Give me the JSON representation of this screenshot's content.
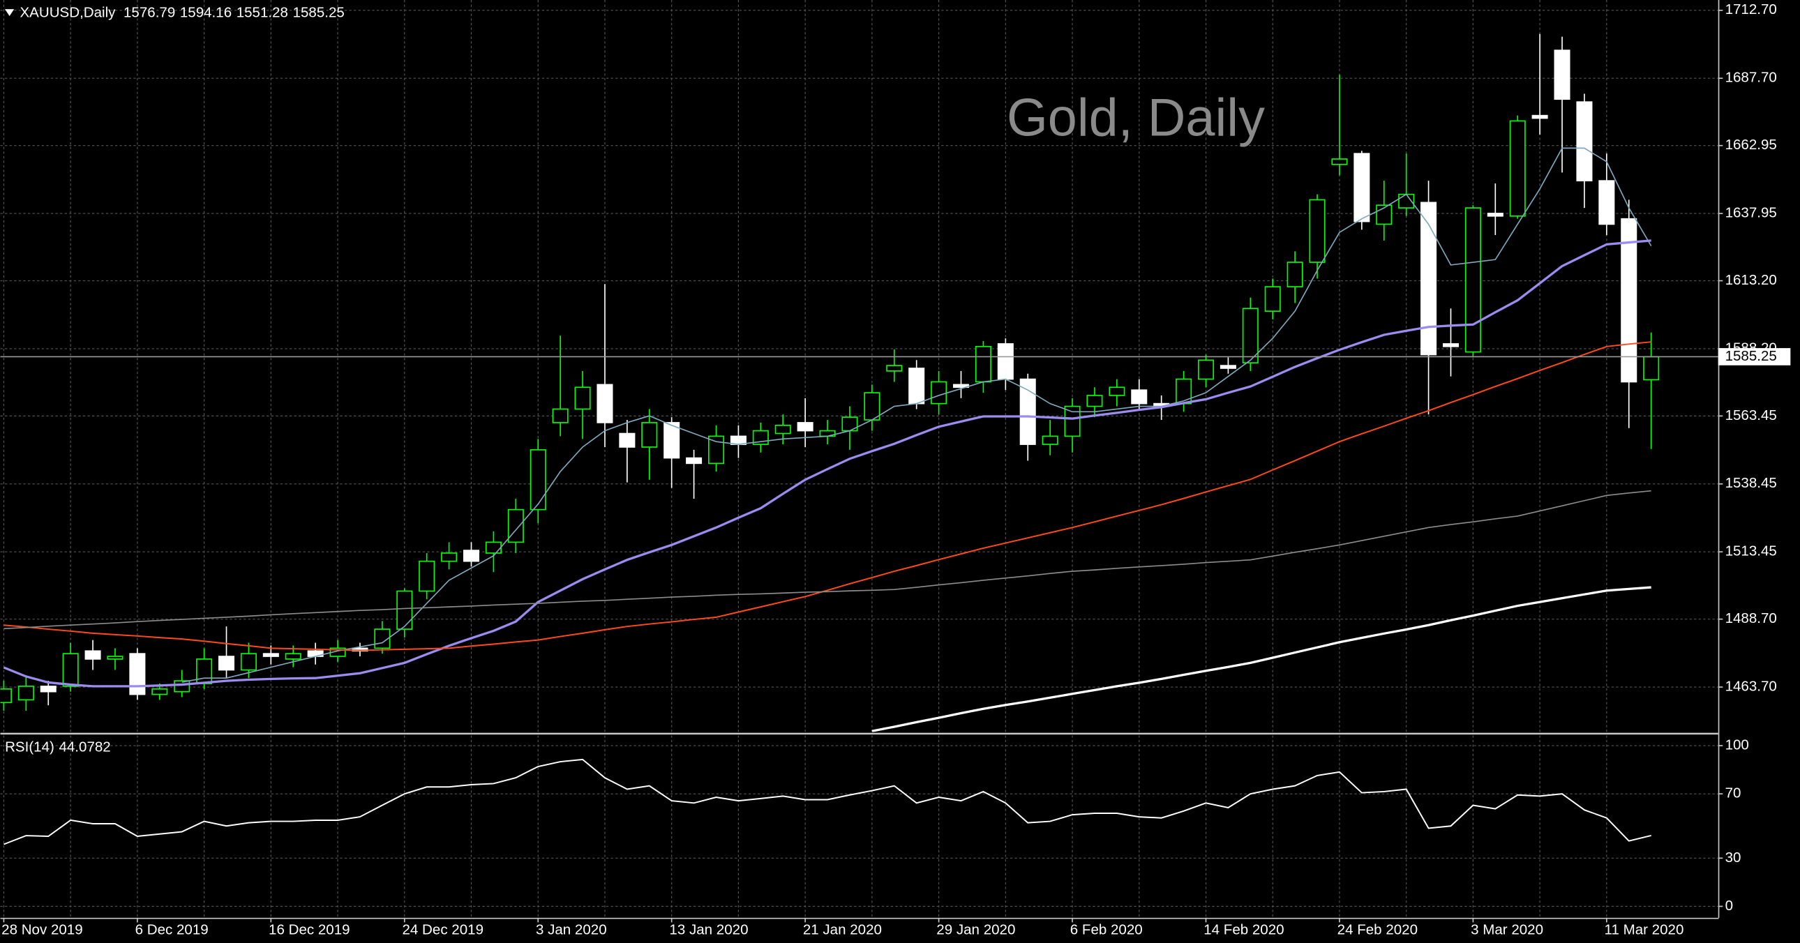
{
  "chart_data": [
    {
      "type": "candlestick",
      "symbol": "XAUUSD,Daily",
      "title": "Gold, Daily",
      "categories": [
        "28 Nov 2019",
        null,
        null,
        null,
        null,
        null,
        "6 Dec 2019",
        null,
        null,
        null,
        null,
        null,
        "16 Dec 2019",
        null,
        null,
        null,
        null,
        null,
        "24 Dec 2019",
        null,
        null,
        null,
        null,
        null,
        "3 Jan 2020",
        null,
        null,
        null,
        null,
        null,
        "13 Jan 2020",
        null,
        null,
        null,
        null,
        null,
        "21 Jan 2020",
        null,
        null,
        null,
        null,
        null,
        "29 Jan 2020",
        null,
        null,
        null,
        null,
        null,
        "6 Feb 2020",
        null,
        null,
        null,
        null,
        null,
        "14 Feb 2020",
        null,
        null,
        null,
        null,
        null,
        "24 Feb 2020",
        null,
        null,
        null,
        null,
        null,
        "3 Mar 2020",
        null,
        null,
        null,
        null,
        null,
        "11 Mar 2020",
        null,
        null
      ],
      "open": [
        1458,
        1459,
        1464,
        1464,
        1477,
        1474,
        1476,
        1461,
        1462,
        1465,
        1475,
        1470,
        1476,
        1474,
        1477,
        1475,
        1478,
        1478,
        1485,
        1499,
        1510,
        1514,
        1513,
        1517,
        1529,
        1561,
        1566,
        1575,
        1557,
        1552,
        1561,
        1548,
        1546,
        1556,
        1553,
        1557,
        1561,
        1556,
        1558,
        1562,
        1580,
        1581,
        1568,
        1575,
        1576,
        1590,
        1577,
        1553,
        1556,
        1567,
        1571,
        1573,
        1568,
        1568,
        1577,
        1582,
        1583,
        1602,
        1611,
        1620,
        1656,
        1660,
        1634,
        1640,
        1642,
        1590,
        1587,
        1638,
        1637,
        1674,
        1698,
        1679,
        1650,
        1636,
        1576.79
      ],
      "high": [
        1466,
        1468,
        1466,
        1480,
        1481,
        1478,
        1478,
        1465,
        1470,
        1478,
        1486,
        1480,
        1479,
        1479,
        1480,
        1481,
        1480,
        1488,
        1500,
        1513,
        1517,
        1517,
        1521,
        1533,
        1555,
        1593,
        1580,
        1612,
        1562,
        1566,
        1563,
        1551,
        1560,
        1560,
        1561,
        1564,
        1570,
        1562,
        1567,
        1575,
        1588,
        1584,
        1580,
        1580,
        1591,
        1592,
        1579,
        1562,
        1570,
        1574,
        1577,
        1577,
        1571,
        1580,
        1586,
        1585,
        1607,
        1614,
        1624,
        1645,
        1689,
        1661,
        1650,
        1660,
        1650,
        1603,
        1641,
        1649,
        1674,
        1704,
        1703,
        1682,
        1660,
        1643,
        1594.16
      ],
      "low": [
        1455,
        1455,
        1457,
        1462,
        1470,
        1470,
        1459,
        1459,
        1460,
        1463,
        1467,
        1467,
        1472,
        1471,
        1472,
        1473,
        1475,
        1476,
        1482,
        1496,
        1507,
        1508,
        1506,
        1513,
        1524,
        1556,
        1555,
        1552,
        1539,
        1540,
        1537,
        1533,
        1543,
        1548,
        1550,
        1553,
        1552,
        1553,
        1551,
        1558,
        1576,
        1566,
        1564,
        1570,
        1572,
        1573,
        1547,
        1549,
        1550,
        1563,
        1567,
        1566,
        1562,
        1565,
        1574,
        1579,
        1580,
        1599,
        1605,
        1614,
        1652,
        1632,
        1628,
        1637,
        1564,
        1578,
        1585,
        1630,
        1636,
        1667,
        1653,
        1640,
        1630,
        1559,
        1551.28
      ],
      "close": [
        1463,
        1464,
        1462,
        1476,
        1474,
        1475,
        1461,
        1463,
        1466,
        1474,
        1470,
        1476,
        1475,
        1476,
        1475,
        1478,
        1477,
        1485,
        1499,
        1510,
        1513,
        1510,
        1517,
        1529,
        1551,
        1566,
        1574,
        1561,
        1552,
        1561,
        1548,
        1546,
        1556,
        1553,
        1558,
        1560,
        1558,
        1558,
        1563,
        1572,
        1582,
        1568,
        1576,
        1574,
        1589,
        1577,
        1553,
        1556,
        1567,
        1571,
        1574,
        1568,
        1567,
        1577,
        1584,
        1581,
        1603,
        1611,
        1620,
        1643,
        1658,
        1635,
        1641,
        1645,
        1586,
        1589,
        1640,
        1637,
        1672,
        1673,
        1680,
        1650,
        1634,
        1576,
        1585.25
      ],
      "up_color": "#00ff00",
      "down_color": "#ffffff",
      "series": [
        {
          "color": "#7fa9bd",
          "width": 1,
          "values": [
            null,
            null,
            null,
            null,
            null,
            null,
            null,
            null,
            1465.5,
            1467,
            1467,
            1469,
            1471,
            1473,
            1475,
            1477,
            1478.5,
            1480,
            1486,
            1494.5,
            1503,
            1507.5,
            1512,
            1521.5,
            1531,
            1543,
            1552,
            1558,
            1561,
            1563.5,
            1560,
            1557,
            1554,
            1553,
            1554,
            1555,
            1555.5,
            1556,
            1558,
            1562,
            1567,
            1568,
            1571,
            1573.5,
            1576,
            1577,
            1573,
            1568,
            1565,
            1565,
            1566,
            1567,
            1567,
            1569,
            1572,
            1578,
            1584,
            1592,
            1602,
            1617,
            1631,
            1636,
            1640,
            1645,
            1634,
            1619,
            1620,
            1621,
            1634,
            1647,
            1662,
            1662,
            1657,
            1640,
            1626
          ]
        },
        {
          "color": "#9c8cf0",
          "width": 2,
          "values": [
            1470.9,
            1467.6,
            1465.4,
            1464.6,
            1464,
            1464,
            1464,
            1464.3,
            1464.6,
            1465.3,
            1466,
            1466.4,
            1466.7,
            1466.9,
            1467,
            1467.9,
            1468.8,
            1470.7,
            1472.6,
            1475.8,
            1478.9,
            1481.7,
            1484.4,
            1487.8,
            1495,
            1499.2,
            1503.4,
            1507,
            1510.5,
            1513.3,
            1516,
            1519.2,
            1522.4,
            1526,
            1529.5,
            1534.8,
            1540,
            1543.9,
            1547.7,
            1550.5,
            1553.2,
            1556.4,
            1559.5,
            1561.4,
            1563.3,
            1563.3,
            1563.3,
            1562.9,
            1562.5,
            1563.6,
            1564.6,
            1565.7,
            1566.7,
            1568.2,
            1569.6,
            1572,
            1574.3,
            1577.9,
            1581.5,
            1584.7,
            1587.8,
            1590.6,
            1593.3,
            1594.8,
            1596.2,
            1596.7,
            1597.1,
            1601.6,
            1606,
            1612.3,
            1618.6,
            1622.6,
            1626.6,
            1627.3,
            1628
          ]
        },
        {
          "color": "#ff4a1c",
          "width": 1.2,
          "values": [
            1486.5,
            1485.8,
            1485,
            1484.3,
            1483.5,
            1483,
            1482.5,
            1481.9,
            1481.4,
            1480.6,
            1479.7,
            1478.9,
            1478,
            1477.8,
            1477.6,
            1477.4,
            1477.2,
            1477.4,
            1477.6,
            1477.8,
            1478,
            1478.8,
            1479.5,
            1480.3,
            1481,
            1482.3,
            1483.5,
            1484.8,
            1486,
            1486.9,
            1487.7,
            1488.6,
            1489.4,
            1491.3,
            1493.2,
            1495.1,
            1497,
            1499.3,
            1501.7,
            1504,
            1506.3,
            1508.4,
            1510.6,
            1512.7,
            1514.8,
            1516.7,
            1518.6,
            1520.5,
            1522.4,
            1524.5,
            1526.6,
            1528.7,
            1530.8,
            1533.1,
            1535.5,
            1537.8,
            1540.1,
            1543.6,
            1547,
            1550.5,
            1554,
            1556.9,
            1559.7,
            1562.6,
            1565.4,
            1568.4,
            1571.3,
            1574.3,
            1577.2,
            1580.2,
            1583.1,
            1586.1,
            1589,
            1589.9,
            1590.7
          ]
        },
        {
          "color": "#8c8c8c",
          "width": 1,
          "values": [
            1485.2,
            1485.6,
            1486.1,
            1486.5,
            1486.9,
            1487.3,
            1487.8,
            1488.2,
            1488.6,
            1489,
            1489.4,
            1489.8,
            1490.3,
            1490.7,
            1491.1,
            1491.5,
            1491.9,
            1492.2,
            1492.6,
            1492.9,
            1493.2,
            1493.5,
            1493.9,
            1494.2,
            1494.5,
            1494.9,
            1495.3,
            1495.6,
            1496,
            1496.4,
            1496.8,
            1497.1,
            1497.5,
            1497.8,
            1498,
            1498.3,
            1498.6,
            1498.8,
            1499.1,
            1499.3,
            1499.6,
            1500.4,
            1501.3,
            1502.1,
            1503,
            1503.8,
            1504.6,
            1505.5,
            1506.3,
            1506.8,
            1507.4,
            1507.9,
            1508.4,
            1508.9,
            1509.5,
            1510,
            1510.5,
            1511.9,
            1513.3,
            1514.6,
            1516,
            1517.6,
            1519.2,
            1520.8,
            1522.4,
            1523.5,
            1524.5,
            1525.6,
            1526.6,
            1528.5,
            1530.4,
            1532.3,
            1534.2,
            1535.1,
            1535.9
          ]
        },
        {
          "color": "#ffffff",
          "width": 2,
          "values": [
            null,
            null,
            null,
            null,
            null,
            null,
            null,
            null,
            null,
            null,
            null,
            null,
            null,
            null,
            null,
            null,
            null,
            null,
            null,
            null,
            null,
            null,
            null,
            null,
            null,
            null,
            null,
            null,
            null,
            null,
            null,
            null,
            null,
            null,
            null,
            null,
            null,
            null,
            null,
            1447.5,
            1449.1,
            1450.8,
            1452.4,
            1454.1,
            1455.7,
            1457.1,
            1458.4,
            1459.8,
            1461.2,
            1462.6,
            1464,
            1465.3,
            1466.7,
            1468.2,
            1469.7,
            1471.1,
            1472.6,
            1474.5,
            1476.4,
            1478.3,
            1480.2,
            1481.8,
            1483.4,
            1484.9,
            1486.5,
            1488.3,
            1490,
            1491.8,
            1493.6,
            1495,
            1496.4,
            1497.8,
            1499.2,
            1499.8,
            1500.4
          ]
        }
      ],
      "ylim": [
        1447.2,
        1716.5
      ],
      "yticks": [
        {
          "value": 1463.7,
          "label": "1463.70"
        },
        {
          "value": 1488.7,
          "label": "1488.70"
        },
        {
          "value": 1513.45,
          "label": "1513.45"
        },
        {
          "value": 1538.45,
          "label": "1538.45"
        },
        {
          "value": 1563.45,
          "label": "1563.45"
        },
        {
          "value": 1588.2,
          "label": "1588.20"
        },
        {
          "value": 1613.2,
          "label": "1613.20"
        },
        {
          "value": 1637.95,
          "label": "1637.95"
        },
        {
          "value": 1662.95,
          "label": "1662.95"
        },
        {
          "value": 1687.7,
          "label": "1687.70"
        },
        {
          "value": 1712.7,
          "label": "1712.70"
        }
      ],
      "grid": true,
      "last_price": 1585.25
    },
    {
      "type": "line",
      "title": "RSI(14)",
      "color": "#ffffff",
      "values": [
        38.6,
        44,
        43.6,
        53.6,
        51.4,
        51.4,
        43.6,
        45,
        46.4,
        52.9,
        50,
        52,
        52.9,
        52.9,
        53.6,
        53.6,
        55.7,
        62.9,
        70,
        74.3,
        74.3,
        75.7,
        76.4,
        80,
        87,
        90,
        91.4,
        80,
        72.9,
        75,
        65.7,
        64.3,
        67.9,
        65.7,
        67.1,
        68.6,
        66.4,
        66.4,
        69.3,
        72,
        75,
        64.3,
        67.9,
        65.7,
        71.4,
        64.3,
        52,
        52.9,
        57,
        57.9,
        57.9,
        55.7,
        55,
        59.3,
        64.3,
        61.4,
        70,
        72.9,
        75,
        81.4,
        83.6,
        70.7,
        71.4,
        72.9,
        48.6,
        50,
        62.9,
        60.7,
        69.3,
        68.6,
        70,
        60,
        55,
        40.7,
        44.0782
      ],
      "ylim": [
        -7.1,
        106.4
      ],
      "yticks": [
        0,
        30,
        70,
        100
      ],
      "grid": true
    }
  ]
}
